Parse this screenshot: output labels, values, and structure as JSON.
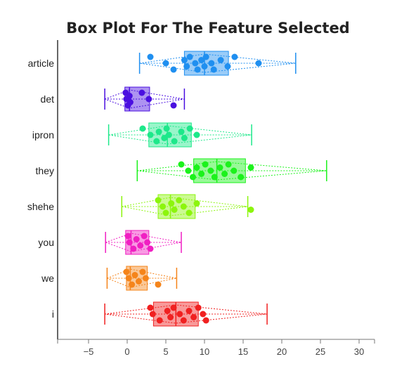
{
  "chart_data": {
    "type": "box",
    "title": "Box Plot For The Feature Selected",
    "xlabel": "",
    "ylabel": "",
    "xlim": [
      -9,
      32
    ],
    "xticks": [
      -5,
      0,
      5,
      10,
      15,
      20,
      25,
      30
    ],
    "grid": false,
    "legend": "none",
    "categories": [
      "article",
      "det",
      "ipron",
      "they",
      "shehe",
      "you",
      "we",
      "i"
    ],
    "series": [
      {
        "category": "article",
        "color": "#1f8ff0",
        "whisker_low": 1.6,
        "q1": 7.4,
        "median": 10.0,
        "q3": 13.1,
        "whisker_high": 21.8,
        "points": [
          3.0,
          5.0,
          6.0,
          7.4,
          7.7,
          8.1,
          8.8,
          9.1,
          9.6,
          10.0,
          10.2,
          10.9,
          11.2,
          12.1,
          13.0,
          13.9,
          17.0
        ]
      },
      {
        "category": "det",
        "color": "#4a0fe0",
        "whisker_low": -2.9,
        "q1": -0.3,
        "median": 0.3,
        "q3": 2.9,
        "whisker_high": 7.4,
        "points": [
          -0.2,
          -0.1,
          0.1,
          0.3,
          0.4,
          1.9,
          2.8,
          6.0
        ]
      },
      {
        "category": "ipron",
        "color": "#1de88a",
        "whisker_low": -2.4,
        "q1": 2.8,
        "median": 5.2,
        "q3": 8.3,
        "whisker_high": 16.1,
        "points": [
          2.0,
          3.0,
          3.8,
          4.1,
          4.8,
          5.1,
          5.4,
          6.1,
          7.0,
          7.4,
          8.1,
          9.0
        ]
      },
      {
        "category": "they",
        "color": "#1bf21b",
        "whisker_low": 1.3,
        "q1": 8.6,
        "median": 11.6,
        "q3": 15.3,
        "whisker_high": 25.8,
        "points": [
          7.0,
          7.9,
          8.5,
          9.0,
          9.6,
          10.1,
          10.8,
          11.3,
          12.0,
          12.6,
          13.1,
          13.8,
          14.7,
          16.0
        ]
      },
      {
        "category": "shehe",
        "color": "#8cf50d",
        "whisker_low": -0.7,
        "q1": 4.0,
        "median": 5.6,
        "q3": 8.8,
        "whisker_high": 15.6,
        "points": [
          4.0,
          4.6,
          5.0,
          5.7,
          6.1,
          6.7,
          7.3,
          8.0,
          9.0,
          16.0
        ]
      },
      {
        "category": "you",
        "color": "#f01fc2",
        "whisker_low": -2.8,
        "q1": -0.2,
        "median": 0.5,
        "q3": 2.8,
        "whisker_high": 7.0,
        "points": [
          0.1,
          0.3,
          0.8,
          1.2,
          1.7,
          2.2,
          2.6,
          3.0
        ]
      },
      {
        "category": "we",
        "color": "#f5841a",
        "whisker_low": -2.6,
        "q1": -0.1,
        "median": 0.4,
        "q3": 2.6,
        "whisker_high": 6.4,
        "points": [
          -0.1,
          0.2,
          0.6,
          1.0,
          1.5,
          2.0,
          2.4,
          4.0
        ]
      },
      {
        "category": "i",
        "color": "#f02020",
        "whisker_low": -2.9,
        "q1": 3.4,
        "median": 6.3,
        "q3": 9.2,
        "whisker_high": 18.1,
        "points": [
          3.0,
          3.3,
          4.2,
          5.2,
          5.6,
          6.0,
          6.8,
          7.3,
          8.0,
          8.6,
          9.2,
          9.8,
          10.2
        ]
      }
    ]
  }
}
